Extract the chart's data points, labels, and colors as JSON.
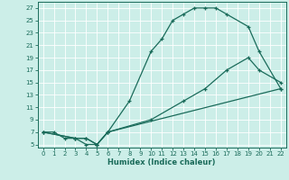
{
  "xlabel": "Humidex (Indice chaleur)",
  "bg_color": "#cceee8",
  "line_color": "#1a6b5a",
  "grid_color": "#ffffff",
  "xlim": [
    -0.5,
    22.5
  ],
  "ylim": [
    4.5,
    28
  ],
  "xticks": [
    0,
    1,
    2,
    3,
    4,
    5,
    6,
    7,
    8,
    9,
    10,
    11,
    12,
    13,
    14,
    15,
    16,
    17,
    18,
    19,
    20,
    21,
    22
  ],
  "yticks": [
    5,
    7,
    9,
    11,
    13,
    15,
    17,
    19,
    21,
    23,
    25,
    27
  ],
  "curve1_x": [
    0,
    1,
    2,
    3,
    4,
    5,
    6,
    8,
    10,
    11,
    12,
    13,
    14,
    15,
    16,
    17,
    19,
    20,
    22
  ],
  "curve1_y": [
    7,
    7,
    6,
    6,
    5,
    5,
    7,
    12,
    20,
    22,
    25,
    26,
    27,
    27,
    27,
    26,
    24,
    20,
    14
  ],
  "curve2_x": [
    0,
    3,
    4,
    5,
    6,
    22
  ],
  "curve2_y": [
    7,
    6,
    6,
    5,
    7,
    14
  ],
  "curve3_x": [
    0,
    3,
    4,
    5,
    6,
    10,
    13,
    15,
    17,
    19,
    20,
    22
  ],
  "curve3_y": [
    7,
    6,
    6,
    5,
    7,
    9,
    12,
    14,
    17,
    19,
    17,
    15
  ]
}
